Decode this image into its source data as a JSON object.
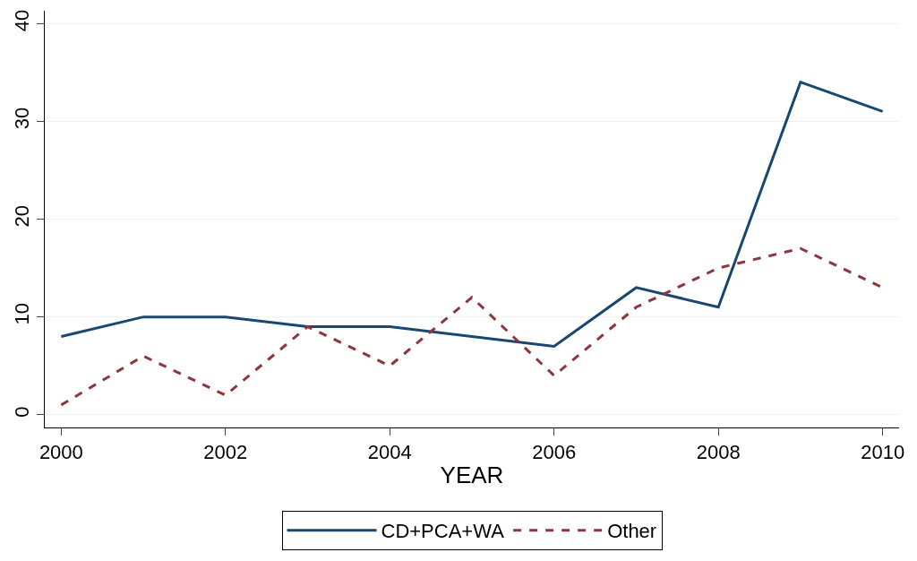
{
  "chart_data": {
    "type": "line",
    "xlabel": "YEAR",
    "x": [
      2000,
      2001,
      2002,
      2003,
      2004,
      2005,
      2006,
      2007,
      2008,
      2009,
      2010
    ],
    "series": [
      {
        "name": "CD+PCA+WA",
        "color": "#1a476f",
        "line_style": "solid",
        "values": [
          8,
          10,
          10,
          9,
          9,
          8,
          7,
          13,
          11,
          34,
          31
        ]
      },
      {
        "name": "Other",
        "color": "#90353b",
        "line_style": "dashed",
        "values": [
          1,
          6,
          2,
          9,
          5,
          12,
          4,
          11,
          15,
          17,
          13
        ]
      }
    ],
    "xlim": [
      1999.8,
      2010.2
    ],
    "xticks": [
      2000,
      2002,
      2004,
      2006,
      2008,
      2010
    ],
    "ylim": [
      -1.3,
      41.3
    ],
    "yticks": [
      0,
      10,
      20,
      30,
      40
    ],
    "grid": "y",
    "legend": "bottom",
    "marker": "none"
  }
}
